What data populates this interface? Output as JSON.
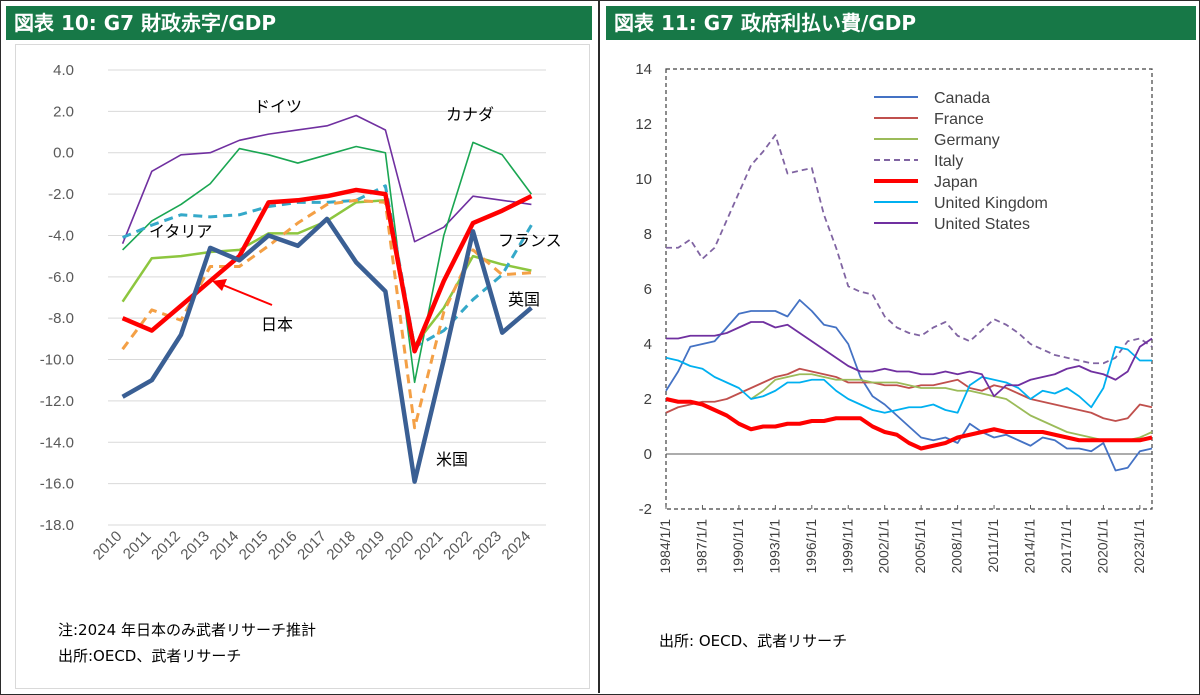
{
  "panel1": {
    "header": "図表 10: G7 財政赤字/GDP",
    "note_line1": "注:2024 年日本のみ武者リサーチ推計",
    "note_line2": "出所:OECD、武者リサーチ"
  },
  "panel2": {
    "header": "図表 11: G7 政府利払い費/GDP",
    "note_line1": "出所: OECD、武者リサーチ"
  },
  "chart_data": [
    {
      "type": "line",
      "x": [
        "2010",
        "2011",
        "2012",
        "2013",
        "2014",
        "2015",
        "2016",
        "2017",
        "2018",
        "2019",
        "2020",
        "2021",
        "2022",
        "2023",
        "2024"
      ],
      "ylim": [
        -18,
        4
      ],
      "yticks": [
        "4.0",
        "2.0",
        "0.0",
        "-2.0",
        "-4.0",
        "-6.0",
        "-8.0",
        "-10.0",
        "-12.0",
        "-14.0",
        "-16.0",
        "-18.0"
      ],
      "series": [
        {
          "name": "ドイツ",
          "color": "#7030a0",
          "values": [
            -4.4,
            -0.9,
            -0.1,
            0.0,
            0.6,
            0.9,
            1.1,
            1.3,
            1.8,
            1.1,
            -4.3,
            -3.6,
            -2.1,
            -2.3,
            -2.5
          ]
        },
        {
          "name": "カナダ",
          "color": "#1aa652",
          "values": [
            -4.7,
            -3.3,
            -2.5,
            -1.5,
            0.2,
            -0.1,
            -0.5,
            -0.1,
            0.3,
            0.0,
            -11.1,
            -4.0,
            0.5,
            -0.1,
            -2.0
          ]
        },
        {
          "name": "イタリア",
          "color": "#8dc63f",
          "values": [
            -7.2,
            -5.1,
            -5.0,
            -4.8,
            -4.7,
            -3.9,
            -3.9,
            -3.3,
            -2.4,
            -2.3,
            -9.3,
            -7.5,
            -5.0,
            -5.4,
            -5.7
          ]
        },
        {
          "name": "フランス",
          "color": "#35a9c9",
          "values": [
            -4.1,
            -3.5,
            -3.0,
            -3.1,
            -3.0,
            -2.6,
            -2.4,
            -2.4,
            -2.3,
            -1.6,
            -9.4,
            -8.6,
            -7.1,
            -5.9,
            -3.5
          ]
        },
        {
          "name": "英国",
          "color": "#f4a046",
          "values": [
            -9.5,
            -7.6,
            -8.1,
            -5.5,
            -5.5,
            -4.5,
            -3.4,
            -2.5,
            -2.3,
            -2.4,
            -13.3,
            -7.7,
            -4.7,
            -5.9,
            -5.8
          ]
        },
        {
          "name": "日本",
          "color": "#ff0000",
          "values": [
            -8.0,
            -8.6,
            -7.4,
            -6.2,
            -5.0,
            -2.4,
            -2.3,
            -2.1,
            -1.8,
            -2.0,
            -9.6,
            -6.2,
            -3.4,
            -2.8,
            -2.1
          ]
        },
        {
          "name": "米国",
          "color": "#3a5f94",
          "values": [
            -11.8,
            -11.0,
            -8.8,
            -4.6,
            -5.2,
            -4.0,
            -4.5,
            -3.2,
            -5.3,
            -6.7,
            -15.9,
            -10.0,
            -3.8,
            -8.7,
            -7.5
          ]
        }
      ],
      "annotations": [
        "ドイツ",
        "カナダ",
        "イタリア",
        "フランス",
        "英国",
        "日本",
        "米国"
      ]
    },
    {
      "type": "line",
      "x_start": 1984,
      "x_end": 2024,
      "xticks": [
        "1984/1/1",
        "1987/1/1",
        "1990/1/1",
        "1993/1/1",
        "1996/1/1",
        "1999/1/1",
        "2002/1/1",
        "2005/1/1",
        "2008/1/1",
        "2011/1/1",
        "2014/1/1",
        "2017/1/1",
        "2020/1/1",
        "2023/1/1"
      ],
      "ylim": [
        -2,
        14
      ],
      "yticks": [
        "14",
        "12",
        "10",
        "8",
        "6",
        "4",
        "2",
        "0",
        "-2"
      ],
      "legend_position": "top-center",
      "series": [
        {
          "name": "Canada",
          "color": "#4472c4",
          "dash": false,
          "values": [
            2.3,
            3.0,
            3.9,
            4.0,
            4.1,
            4.6,
            5.1,
            5.2,
            5.2,
            5.2,
            5.0,
            5.6,
            5.2,
            4.7,
            4.6,
            4.0,
            2.8,
            2.1,
            1.8,
            1.4,
            1.0,
            0.6,
            0.5,
            0.6,
            0.4,
            1.1,
            0.8,
            0.6,
            0.7,
            0.5,
            0.3,
            0.6,
            0.5,
            0.2,
            0.2,
            0.1,
            0.4,
            -0.6,
            -0.5,
            0.1,
            0.2
          ]
        },
        {
          "name": "France",
          "color": "#c0504d",
          "dash": false,
          "values": [
            1.5,
            1.7,
            1.8,
            1.9,
            1.9,
            2.0,
            2.2,
            2.4,
            2.6,
            2.8,
            2.9,
            3.1,
            3.0,
            2.9,
            2.8,
            2.6,
            2.6,
            2.6,
            2.5,
            2.5,
            2.4,
            2.5,
            2.5,
            2.6,
            2.7,
            2.4,
            2.3,
            2.5,
            2.4,
            2.2,
            2.0,
            1.9,
            1.8,
            1.7,
            1.6,
            1.5,
            1.3,
            1.2,
            1.3,
            1.8,
            1.7
          ]
        },
        {
          "name": "Germany",
          "color": "#9bbb59",
          "dash": false,
          "values": [
            null,
            null,
            null,
            null,
            null,
            null,
            null,
            2.0,
            2.3,
            2.7,
            2.8,
            2.9,
            2.9,
            2.8,
            2.7,
            2.7,
            2.7,
            2.6,
            2.6,
            2.6,
            2.5,
            2.4,
            2.4,
            2.4,
            2.3,
            2.3,
            2.2,
            2.1,
            2.0,
            1.7,
            1.4,
            1.2,
            1.0,
            0.8,
            0.7,
            0.6,
            0.5,
            0.5,
            0.5,
            0.6,
            0.8
          ]
        },
        {
          "name": "Italy",
          "color": "#8064a2",
          "dash": true,
          "values": [
            7.5,
            7.5,
            7.8,
            7.1,
            7.5,
            8.5,
            9.5,
            10.5,
            11.0,
            11.6,
            10.2,
            10.3,
            10.4,
            8.7,
            7.5,
            6.1,
            5.9,
            5.8,
            5.0,
            4.6,
            4.4,
            4.3,
            4.6,
            4.8,
            4.3,
            4.1,
            4.5,
            4.9,
            4.7,
            4.4,
            4.0,
            3.8,
            3.6,
            3.5,
            3.4,
            3.3,
            3.3,
            3.5,
            4.1,
            4.2,
            3.9
          ]
        },
        {
          "name": "Japan",
          "color": "#ff0000",
          "dash": false,
          "values": [
            2.0,
            1.9,
            1.9,
            1.8,
            1.6,
            1.4,
            1.1,
            0.9,
            1.0,
            1.0,
            1.1,
            1.1,
            1.2,
            1.2,
            1.3,
            1.3,
            1.3,
            1.0,
            0.8,
            0.7,
            0.4,
            0.2,
            0.3,
            0.4,
            0.6,
            0.7,
            0.8,
            0.9,
            0.8,
            0.8,
            0.8,
            0.8,
            0.7,
            0.6,
            0.5,
            0.5,
            0.5,
            0.5,
            0.5,
            0.5,
            0.6
          ]
        },
        {
          "name": "United Kingdom",
          "color": "#00b0f0",
          "dash": false,
          "values": [
            3.5,
            3.4,
            3.2,
            3.1,
            2.8,
            2.6,
            2.4,
            2.0,
            2.1,
            2.3,
            2.6,
            2.6,
            2.7,
            2.7,
            2.3,
            2.0,
            1.8,
            1.6,
            1.5,
            1.6,
            1.7,
            1.7,
            1.8,
            1.6,
            1.5,
            2.5,
            2.8,
            2.7,
            2.6,
            2.4,
            2.0,
            2.3,
            2.2,
            2.4,
            2.1,
            1.7,
            2.4,
            3.9,
            3.8,
            3.4,
            3.4
          ]
        },
        {
          "name": "United States",
          "color": "#7030a0",
          "dash": false,
          "values": [
            4.2,
            4.2,
            4.3,
            4.3,
            4.3,
            4.4,
            4.6,
            4.8,
            4.8,
            4.6,
            4.7,
            4.4,
            4.1,
            3.8,
            3.5,
            3.2,
            3.0,
            3.0,
            3.1,
            3.0,
            3.0,
            2.9,
            2.9,
            3.0,
            2.9,
            3.0,
            2.9,
            2.1,
            2.5,
            2.5,
            2.7,
            2.8,
            2.9,
            3.1,
            3.2,
            3.0,
            2.9,
            2.7,
            3.0,
            3.9,
            4.2
          ]
        }
      ]
    }
  ]
}
